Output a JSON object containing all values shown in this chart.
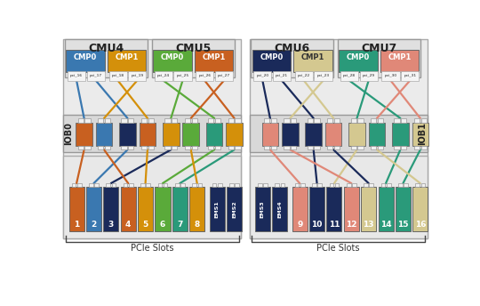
{
  "fig_bg": "#ffffff",
  "panel_bg": "#e8e8e8",
  "iob_bg": "#d8d8d8",
  "slot_panel_bg": "#e8e8e8",
  "cmu_labels": [
    "CMU4",
    "CMU5",
    "CMU6",
    "CMU7"
  ],
  "cmp_configs": [
    {
      "label": "CMP0",
      "color": "#3a78b0",
      "tc": "#ffffff"
    },
    {
      "label": "CMP1",
      "color": "#d4900a",
      "tc": "#ffffff"
    },
    {
      "label": "CMP0",
      "color": "#5aaa3a",
      "tc": "#ffffff"
    },
    {
      "label": "CMP1",
      "color": "#c86020",
      "tc": "#ffffff"
    },
    {
      "label": "CMP0",
      "color": "#1a2a5a",
      "tc": "#ffffff"
    },
    {
      "label": "CMP1",
      "color": "#d4c890",
      "tc": "#333333"
    },
    {
      "label": "CMP0",
      "color": "#2a9a7a",
      "tc": "#ffffff"
    },
    {
      "label": "CMP1",
      "color": "#e08878",
      "tc": "#ffffff"
    }
  ],
  "pci_ports": [
    "pci_16",
    "pci_17",
    "pci_18",
    "pci_19",
    "pci_24",
    "pci_25",
    "pci_26",
    "pci_27",
    "pci_20",
    "pci_21",
    "pci_22",
    "pci_23",
    "pci_28",
    "pci_29",
    "pci_30",
    "pci_31"
  ],
  "iob0_label": "IOB0",
  "iob1_label": "IOB1",
  "iob0_colors": [
    "#c86020",
    "#3a78b0",
    "#1a2a5a",
    "#c86020",
    "#d4900a",
    "#5aaa3a",
    "#2a9a7a",
    "#d4900a"
  ],
  "iob1_colors": [
    "#e08878",
    "#1a2a5a",
    "#1a2a5a",
    "#e08878",
    "#d4c890",
    "#2a9a7a",
    "#2a9a7a",
    "#d4c890"
  ],
  "slot_colors_l": [
    "#c86020",
    "#3a78b0",
    "#1a2a5a",
    "#c86020",
    "#d4900a",
    "#5aaa3a",
    "#2a9a7a",
    "#d4900a"
  ],
  "slot_labels_l": [
    "1",
    "2",
    "3",
    "4",
    "5",
    "6",
    "7",
    "8"
  ],
  "ems_labels_l": [
    "EMS1",
    "EMS2"
  ],
  "ems_color_l": "#1a2a5a",
  "slot_colors_r": [
    "#e08878",
    "#1a2a5a",
    "#1a2a5a",
    "#e08878",
    "#d4c890",
    "#2a9a7a",
    "#2a9a7a",
    "#d4c890"
  ],
  "slot_labels_r": [
    "9",
    "10",
    "11",
    "12",
    "13",
    "14",
    "15",
    "16"
  ],
  "ems_labels_r": [
    "EMS3",
    "EMS4"
  ],
  "ems_color_r": "#1a2a5a",
  "wire_colors_top_l": [
    "#3a78b0",
    "#3a78b0",
    "#d4900a",
    "#d4900a",
    "#5aaa3a",
    "#5aaa3a",
    "#c86020",
    "#c86020"
  ],
  "wire_colors_top_r": [
    "#1a2a5a",
    "#1a2a5a",
    "#d4c890",
    "#d4c890",
    "#2a9a7a",
    "#2a9a7a",
    "#e08878",
    "#e08878"
  ],
  "wire_colors_bot_l": [
    "#c86020",
    "#3a78b0",
    "#1a2a5a",
    "#c86020",
    "#d4900a",
    "#5aaa3a",
    "#2a9a7a",
    "#d4900a"
  ],
  "wire_colors_bot_r": [
    "#e08878",
    "#1a2a5a",
    "#d4c890",
    "#e08878",
    "#1a2a5a",
    "#2a9a7a",
    "#2a9a7a",
    "#d4c890"
  ]
}
